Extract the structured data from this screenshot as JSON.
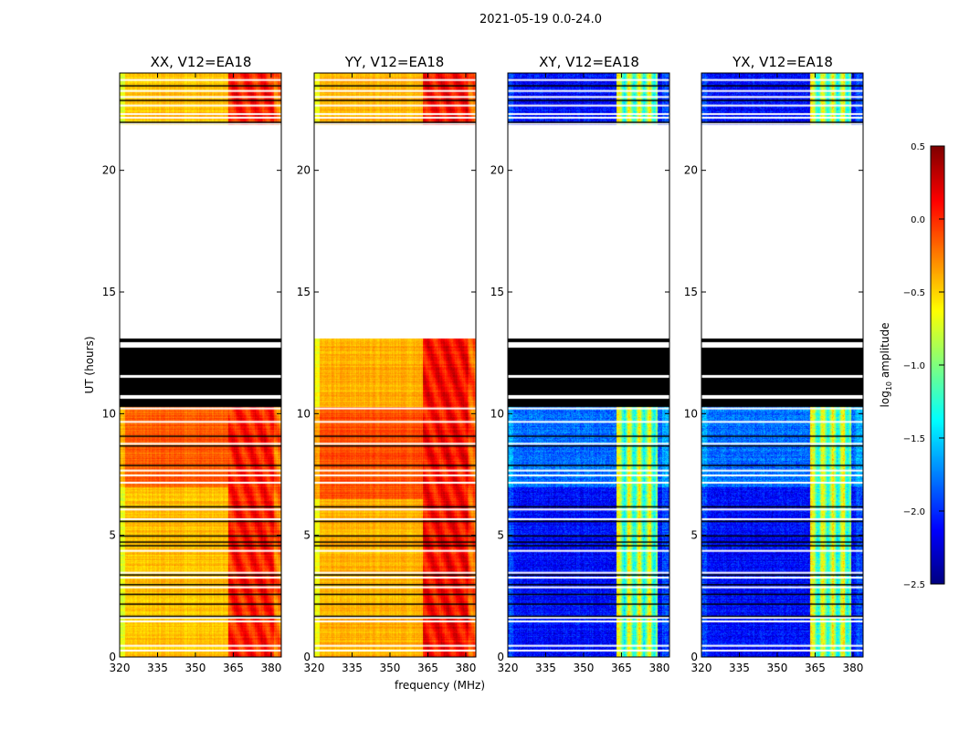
{
  "suptitle": "2021-05-19 0.0-24.0",
  "xlabel": "frequency (MHz)",
  "ylabel": "UT (hours)",
  "colorbar": {
    "label_prefix": "log",
    "label_sub": "10",
    "label_suffix": " amplitude",
    "range": [
      -2.5,
      0.5
    ],
    "ticks": [
      "0.5",
      "0.0",
      "−0.5",
      "−1.0",
      "−1.5",
      "−2.0",
      "−2.5"
    ],
    "tick_values": [
      0.5,
      0,
      -0.5,
      -1,
      -1.5,
      -2,
      -2.5
    ],
    "colormap": "jet"
  },
  "chart_data": {
    "type": "heatmap",
    "title": "2021-05-19 0.0-24.0",
    "xlabel": "frequency (MHz)",
    "ylabel": "UT (hours)",
    "xlim": [
      320,
      384
    ],
    "ylim": [
      0,
      24
    ],
    "xticks": [
      "320",
      "335",
      "350",
      "365",
      "380"
    ],
    "xtick_values": [
      320,
      335,
      350,
      365,
      380
    ],
    "yticks": [
      "0",
      "5",
      "10",
      "15",
      "20"
    ],
    "ytick_values": [
      0,
      5,
      10,
      15,
      20
    ],
    "no_data_hours": [
      13.1,
      21.9
    ],
    "panels": [
      {
        "title": "XX, V12=EA18",
        "base": -0.45,
        "high_band": [
          363,
          384
        ],
        "high_level": 0.05,
        "bright_hours": [
          7,
          10.3
        ],
        "bright_level": -0.15,
        "flagged_black_hours": [
          10.3,
          13.1
        ]
      },
      {
        "title": "YY, V12=EA18",
        "base": -0.4,
        "high_band": [
          363,
          384
        ],
        "high_level": 0.1,
        "bright_hours": [
          6.5,
          10.3
        ],
        "bright_level": -0.1,
        "flagged_black_hours": null
      },
      {
        "title": "XY, V12=EA18",
        "base": -2.1,
        "high_band": [
          363,
          379
        ],
        "high_level": -1.0,
        "bright_hours": [
          7,
          10.3
        ],
        "bright_level": -1.8,
        "flagged_black_hours": [
          10.3,
          13.1
        ]
      },
      {
        "title": "YX, V12=EA18",
        "base": -2.1,
        "high_band": [
          363,
          379
        ],
        "high_level": -1.0,
        "bright_hours": [
          7,
          10.3
        ],
        "bright_level": -1.8,
        "flagged_black_hours": [
          10.3,
          13.1
        ]
      }
    ]
  }
}
